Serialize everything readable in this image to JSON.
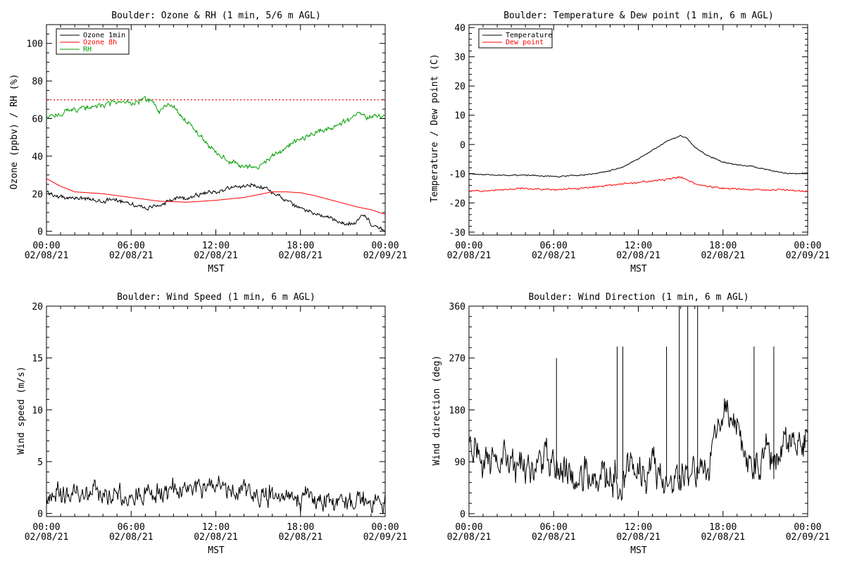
{
  "chart_data": [
    {
      "id": "ozone_rh",
      "type": "line",
      "title": "Boulder: Ozone & RH (1 min, 5/6 m AGL)",
      "xlabel": "MST",
      "ylabel": "Ozone (ppbv) / RH (%)",
      "xlim": [
        0,
        24
      ],
      "ylim": [
        -2,
        110
      ],
      "yticks": [
        0,
        20,
        40,
        60,
        80,
        100
      ],
      "yminor_step": 5,
      "x_tick_labels": [
        [
          "00:00",
          "02/08/21"
        ],
        [
          "06:00",
          "02/08/21"
        ],
        [
          "12:00",
          "02/08/21"
        ],
        [
          "18:00",
          "02/08/21"
        ],
        [
          "00:00",
          "02/09/21"
        ]
      ],
      "reference_line": {
        "y": 70,
        "color": "#ff0000",
        "style": "dotted"
      },
      "legend": [
        "Ozone 1min",
        "Ozone 8h",
        "RH"
      ],
      "legend_position": "top-left",
      "series": [
        {
          "name": "Ozone 1min",
          "color": "#000000",
          "noise": 0.8,
          "x": [
            0,
            1,
            2,
            3,
            4,
            5,
            6,
            7,
            8,
            9,
            10,
            11,
            12,
            13,
            14,
            14.5,
            15,
            15.5,
            16,
            17,
            18,
            19,
            20,
            21,
            22,
            22.5,
            23,
            24
          ],
          "y": [
            21,
            18,
            18,
            17,
            16,
            17,
            15,
            12,
            14,
            17,
            18,
            20,
            21,
            23,
            24,
            25,
            24,
            23,
            21,
            16,
            12,
            10,
            7,
            4,
            5,
            9,
            4,
            0
          ]
        },
        {
          "name": "Ozone 8h",
          "color": "#ff0000",
          "noise": 0,
          "x": [
            0,
            1,
            2,
            4,
            6,
            8,
            10,
            12,
            14,
            16,
            17,
            18,
            19,
            20,
            21,
            22,
            23,
            24
          ],
          "y": [
            28,
            24,
            21,
            20,
            18,
            16,
            15.5,
            16.5,
            18,
            21,
            21,
            20.5,
            19,
            17,
            15,
            13,
            11.5,
            9
          ]
        },
        {
          "name": "RH",
          "color": "#00a000",
          "noise": 1.0,
          "x": [
            0,
            1,
            2,
            3,
            4,
            5,
            6,
            7,
            7.5,
            8,
            8.5,
            9,
            10,
            11,
            12,
            13,
            14,
            15,
            16,
            17,
            18,
            19,
            20,
            21,
            22,
            23,
            24
          ],
          "y": [
            60,
            63,
            65,
            66,
            67,
            69,
            68,
            70,
            69,
            63,
            67,
            66,
            58,
            50,
            42,
            37,
            35,
            34,
            40,
            45,
            49,
            52,
            55,
            58,
            62,
            61,
            62
          ]
        }
      ]
    },
    {
      "id": "temp_dew",
      "type": "line",
      "title": "Boulder: Temperature & Dew point (1 min, 6 m AGL)",
      "xlabel": "MST",
      "ylabel": "Temperature / Dew point (C)",
      "xlim": [
        0,
        24
      ],
      "ylim": [
        -31,
        41
      ],
      "yticks": [
        -30,
        -20,
        -10,
        0,
        10,
        20,
        30,
        40
      ],
      "yminor_step": 2,
      "x_tick_labels": [
        [
          "00:00",
          "02/08/21"
        ],
        [
          "06:00",
          "02/08/21"
        ],
        [
          "12:00",
          "02/08/21"
        ],
        [
          "18:00",
          "02/08/21"
        ],
        [
          "00:00",
          "02/09/21"
        ]
      ],
      "legend": [
        "Temperature",
        "Dew point"
      ],
      "legend_position": "top-left",
      "series": [
        {
          "name": "Temperature",
          "color": "#000000",
          "noise": 0.15,
          "x": [
            0,
            2,
            4,
            6,
            8,
            9,
            10,
            11,
            12,
            13,
            14,
            15,
            15.5,
            16,
            17,
            18,
            19,
            20,
            21,
            22,
            23,
            24
          ],
          "y": [
            -10,
            -10.5,
            -10.5,
            -11,
            -10.5,
            -10,
            -9,
            -7.5,
            -5,
            -2,
            1,
            3,
            2,
            -1,
            -4,
            -6,
            -7,
            -7.5,
            -8.5,
            -9.5,
            -10,
            -10
          ]
        },
        {
          "name": "Dew point",
          "color": "#ff0000",
          "noise": 0.2,
          "x": [
            0,
            2,
            4,
            6,
            8,
            10,
            12,
            14,
            15,
            16,
            17,
            18,
            20,
            22,
            24
          ],
          "y": [
            -16,
            -15.5,
            -15,
            -15.5,
            -15,
            -14,
            -13,
            -12,
            -11,
            -13.5,
            -14.5,
            -15,
            -15.5,
            -15.5,
            -16
          ]
        }
      ]
    },
    {
      "id": "wind_speed",
      "type": "line",
      "title": "Boulder: Wind Speed (1 min, 6 m AGL)",
      "xlabel": "MST",
      "ylabel": "Wind speed (m/s)",
      "xlim": [
        0,
        24
      ],
      "ylim": [
        -0.3,
        20
      ],
      "yticks": [
        0,
        5,
        10,
        15,
        20
      ],
      "yminor_step": 1,
      "x_tick_labels": [
        [
          "00:00",
          "02/08/21"
        ],
        [
          "06:00",
          "02/08/21"
        ],
        [
          "12:00",
          "02/08/21"
        ],
        [
          "18:00",
          "02/08/21"
        ],
        [
          "00:00",
          "02/09/21"
        ]
      ],
      "series": [
        {
          "name": "",
          "color": "#000000",
          "noise": 0.7,
          "x": [
            0,
            2,
            4,
            6,
            8,
            10,
            12,
            14,
            16,
            18,
            20,
            22,
            24
          ],
          "y": [
            1.6,
            1.8,
            1.9,
            1.7,
            2.0,
            2.4,
            2.6,
            2.2,
            1.8,
            1.4,
            1.2,
            1.3,
            1.1
          ]
        }
      ]
    },
    {
      "id": "wind_dir",
      "type": "line",
      "title": "Boulder: Wind Direction (1 min, 6 m AGL)",
      "xlabel": "MST",
      "ylabel": "Wind direction (deg)",
      "xlim": [
        0,
        24
      ],
      "ylim": [
        -5,
        360
      ],
      "yticks": [
        0,
        90,
        180,
        270,
        360
      ],
      "yminor_step": 18,
      "x_tick_labels": [
        [
          "00:00",
          "02/08/21"
        ],
        [
          "06:00",
          "02/08/21"
        ],
        [
          "12:00",
          "02/08/21"
        ],
        [
          "18:00",
          "02/08/21"
        ],
        [
          "00:00",
          "02/09/21"
        ]
      ],
      "series": [
        {
          "name": "",
          "color": "#000000",
          "noise": 22,
          "x": [
            0,
            1,
            2,
            3,
            4,
            5,
            6,
            7,
            8,
            9,
            10,
            11,
            12,
            13,
            14,
            15,
            16,
            17,
            18,
            18.5,
            19,
            20,
            21,
            22,
            23,
            24
          ],
          "y": [
            110,
            95,
            85,
            80,
            80,
            85,
            90,
            75,
            70,
            65,
            60,
            65,
            70,
            75,
            65,
            70,
            70,
            80,
            190,
            180,
            150,
            80,
            95,
            110,
            130,
            140
          ]
        }
      ],
      "spikes": [
        {
          "x": 6.2,
          "y": 270
        },
        {
          "x": 10.5,
          "y": 290
        },
        {
          "x": 10.9,
          "y": 290
        },
        {
          "x": 14.0,
          "y": 290
        },
        {
          "x": 14.9,
          "y": 360
        },
        {
          "x": 15.5,
          "y": 360
        },
        {
          "x": 16.2,
          "y": 360
        },
        {
          "x": 20.2,
          "y": 290
        },
        {
          "x": 21.6,
          "y": 290
        }
      ]
    }
  ]
}
